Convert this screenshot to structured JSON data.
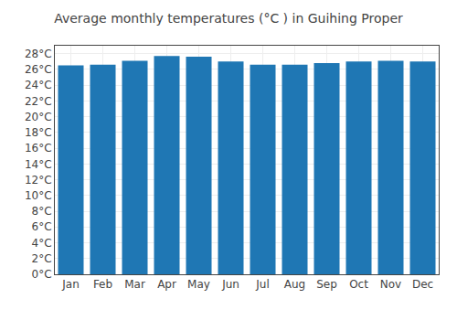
{
  "chart_data": {
    "type": "bar",
    "title": "Average monthly temperatures (°C ) in Guihing Proper",
    "categories": [
      "Jan",
      "Feb",
      "Mar",
      "Apr",
      "May",
      "Jun",
      "Jul",
      "Aug",
      "Sep",
      "Oct",
      "Nov",
      "Dec"
    ],
    "values": [
      26.5,
      26.6,
      27.1,
      27.7,
      27.6,
      27.0,
      26.6,
      26.6,
      26.8,
      27.0,
      27.1,
      27.0
    ],
    "ylim": [
      0,
      29
    ],
    "yticks": [
      {
        "value": 0,
        "label": "0°C"
      },
      {
        "value": 2,
        "label": "2°C"
      },
      {
        "value": 4,
        "label": "4°C"
      },
      {
        "value": 6,
        "label": "6°C"
      },
      {
        "value": 8,
        "label": "8°C"
      },
      {
        "value": 10,
        "label": "10°C"
      },
      {
        "value": 12,
        "label": "12°C"
      },
      {
        "value": 14,
        "label": "14°C"
      },
      {
        "value": 16,
        "label": "16°C"
      },
      {
        "value": 18,
        "label": "18°C"
      },
      {
        "value": 20,
        "label": "20°C"
      },
      {
        "value": 22,
        "label": "22°C"
      },
      {
        "value": 24,
        "label": "24°C"
      },
      {
        "value": 26,
        "label": "26°C"
      },
      {
        "value": 28,
        "label": "28°C"
      }
    ],
    "grid": true
  }
}
